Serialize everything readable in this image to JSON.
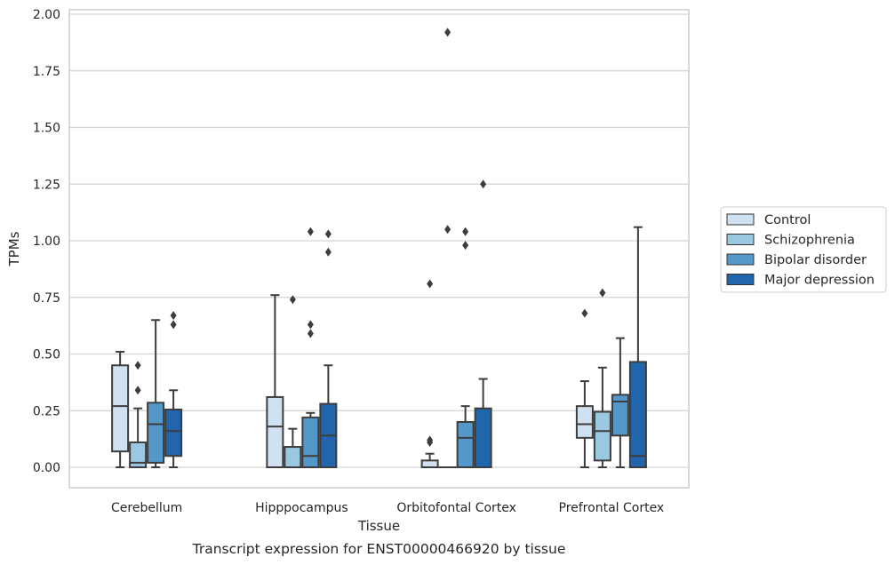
{
  "chart_data": {
    "type": "boxplot",
    "caption": "Transcript expression for ENST00000466920 by tissue",
    "xlabel": "Tissue",
    "ylabel": "TPMs",
    "ylim": [
      -0.09,
      2.02
    ],
    "yticks": [
      "0.00",
      "0.25",
      "0.50",
      "0.75",
      "1.00",
      "1.25",
      "1.50",
      "1.75",
      "2.00"
    ],
    "grid": "horizontal",
    "legend_position": "right",
    "categories": [
      "Cerebellum",
      "Hipppocampus",
      "Orbitofontal Cortex",
      "Prefrontal Cortex"
    ],
    "series": [
      {
        "name": "Control",
        "color": "#d0e1f2",
        "boxes": [
          {
            "whislo": 0.0,
            "q1": 0.07,
            "med": 0.27,
            "q3": 0.45,
            "whishi": 0.51,
            "fliers": []
          },
          {
            "whislo": 0.0,
            "q1": 0.0,
            "med": 0.18,
            "q3": 0.31,
            "whishi": 0.76,
            "fliers": []
          },
          {
            "whislo": 0.0,
            "q1": 0.0,
            "med": 0.0,
            "q3": 0.03,
            "whishi": 0.06,
            "fliers": [
              0.81,
              0.11,
              0.12
            ]
          },
          {
            "whislo": 0.0,
            "q1": 0.13,
            "med": 0.19,
            "q3": 0.27,
            "whishi": 0.38,
            "fliers": [
              0.68
            ]
          }
        ]
      },
      {
        "name": "Schizophrenia",
        "color": "#9ac8e0",
        "boxes": [
          {
            "whislo": 0.0,
            "q1": 0.0,
            "med": 0.02,
            "q3": 0.11,
            "whishi": 0.26,
            "fliers": [
              0.45,
              0.34
            ]
          },
          {
            "whislo": 0.0,
            "q1": 0.0,
            "med": 0.0,
            "q3": 0.09,
            "whishi": 0.17,
            "fliers": [
              0.74
            ]
          },
          {
            "whislo": 0.0,
            "q1": 0.0,
            "med": 0.0,
            "q3": 0.0,
            "whishi": 0.0,
            "fliers": [
              1.92,
              1.05
            ]
          },
          {
            "whislo": 0.0,
            "q1": 0.03,
            "med": 0.16,
            "q3": 0.245,
            "whishi": 0.44,
            "fliers": [
              0.77
            ]
          }
        ]
      },
      {
        "name": "Bipolar disorder",
        "color": "#5398c8",
        "boxes": [
          {
            "whislo": 0.0,
            "q1": 0.02,
            "med": 0.19,
            "q3": 0.285,
            "whishi": 0.65,
            "fliers": []
          },
          {
            "whislo": 0.0,
            "q1": 0.0,
            "med": 0.05,
            "q3": 0.22,
            "whishi": 0.24,
            "fliers": [
              1.04,
              0.63,
              0.59
            ]
          },
          {
            "whislo": 0.0,
            "q1": 0.0,
            "med": 0.13,
            "q3": 0.2,
            "whishi": 0.27,
            "fliers": [
              1.04,
              0.98
            ]
          },
          {
            "whislo": 0.0,
            "q1": 0.14,
            "med": 0.29,
            "q3": 0.32,
            "whishi": 0.57,
            "fliers": []
          }
        ]
      },
      {
        "name": "Major depression",
        "color": "#2166ac",
        "boxes": [
          {
            "whislo": 0.0,
            "q1": 0.05,
            "med": 0.16,
            "q3": 0.255,
            "whishi": 0.34,
            "fliers": [
              0.67,
              0.63
            ]
          },
          {
            "whislo": 0.0,
            "q1": 0.0,
            "med": 0.14,
            "q3": 0.28,
            "whishi": 0.45,
            "fliers": [
              1.03,
              0.95
            ]
          },
          {
            "whislo": 0.0,
            "q1": 0.0,
            "med": 0.0,
            "q3": 0.26,
            "whishi": 0.39,
            "fliers": [
              1.25
            ]
          },
          {
            "whislo": 0.0,
            "q1": 0.0,
            "med": 0.05,
            "q3": 0.465,
            "whishi": 1.06,
            "fliers": []
          }
        ]
      }
    ]
  }
}
